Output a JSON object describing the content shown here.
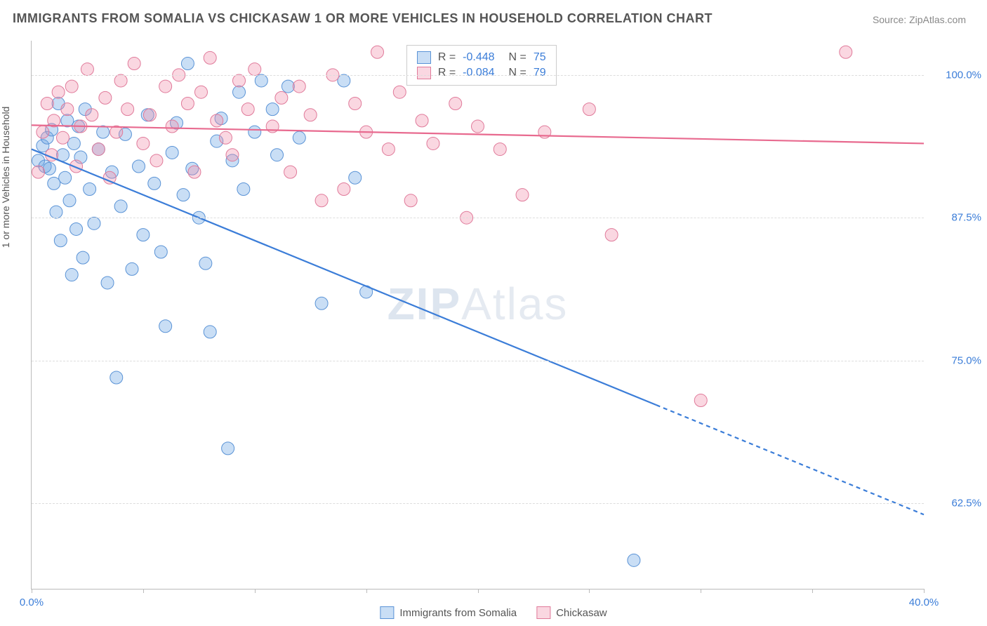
{
  "title": "IMMIGRANTS FROM SOMALIA VS CHICKASAW 1 OR MORE VEHICLES IN HOUSEHOLD CORRELATION CHART",
  "source_label": "Source: ",
  "source_name": "ZipAtlas.com",
  "ylabel": "1 or more Vehicles in Household",
  "watermark_a": "ZIP",
  "watermark_b": "Atlas",
  "chart": {
    "type": "scatter",
    "xlim": [
      0,
      40
    ],
    "ylim": [
      55,
      103
    ],
    "x_ticks": [
      0,
      5,
      10,
      15,
      20,
      25,
      30,
      35,
      40
    ],
    "x_tick_labels": {
      "0": "0.0%",
      "40": "40.0%"
    },
    "y_gridlines": [
      62.5,
      75,
      87.5,
      100
    ],
    "y_tick_labels": {
      "62.5": "62.5%",
      "75": "75.0%",
      "87.5": "87.5%",
      "100": "100.0%"
    },
    "background_color": "#ffffff",
    "grid_color": "#dddddd",
    "axis_color": "#bbbbbb",
    "label_color": "#555555",
    "tick_label_color": "#3b7dd8",
    "title_fontsize": 18,
    "label_fontsize": 14,
    "tick_fontsize": 15,
    "marker_radius": 9,
    "marker_opacity": 0.45,
    "line_width": 2.2,
    "series": [
      {
        "name": "Immigrants from Somalia",
        "color": "#3b7dd8",
        "fill": "rgba(100,160,225,0.35)",
        "stroke": "#5a93d6",
        "R": "-0.448",
        "N": "75",
        "trend": {
          "x1": 0,
          "y1": 93.5,
          "x2": 40,
          "y2": 61.5,
          "solid_until_x": 28
        },
        "points": [
          [
            0.3,
            92.5
          ],
          [
            0.5,
            93.8
          ],
          [
            0.6,
            92.0
          ],
          [
            0.7,
            94.5
          ],
          [
            0.8,
            91.8
          ],
          [
            0.9,
            95.2
          ],
          [
            1.0,
            90.5
          ],
          [
            1.1,
            88.0
          ],
          [
            1.2,
            97.5
          ],
          [
            1.3,
            85.5
          ],
          [
            1.4,
            93.0
          ],
          [
            1.5,
            91.0
          ],
          [
            1.6,
            96.0
          ],
          [
            1.7,
            89.0
          ],
          [
            1.8,
            82.5
          ],
          [
            1.9,
            94.0
          ],
          [
            2.0,
            86.5
          ],
          [
            2.1,
            95.5
          ],
          [
            2.2,
            92.8
          ],
          [
            2.3,
            84.0
          ],
          [
            2.4,
            97.0
          ],
          [
            2.6,
            90.0
          ],
          [
            2.8,
            87.0
          ],
          [
            3.0,
            93.5
          ],
          [
            3.2,
            95.0
          ],
          [
            3.4,
            81.8
          ],
          [
            3.6,
            91.5
          ],
          [
            3.8,
            73.5
          ],
          [
            4.0,
            88.5
          ],
          [
            4.2,
            94.8
          ],
          [
            4.5,
            83.0
          ],
          [
            4.8,
            92.0
          ],
          [
            5.0,
            86.0
          ],
          [
            5.2,
            96.5
          ],
          [
            5.5,
            90.5
          ],
          [
            5.8,
            84.5
          ],
          [
            6.0,
            78.0
          ],
          [
            6.3,
            93.2
          ],
          [
            6.5,
            95.8
          ],
          [
            6.8,
            89.5
          ],
          [
            7.0,
            101.0
          ],
          [
            7.2,
            91.8
          ],
          [
            7.5,
            87.5
          ],
          [
            7.8,
            83.5
          ],
          [
            8.0,
            77.5
          ],
          [
            8.3,
            94.2
          ],
          [
            8.5,
            96.2
          ],
          [
            8.8,
            67.3
          ],
          [
            9.0,
            92.5
          ],
          [
            9.3,
            98.5
          ],
          [
            9.5,
            90.0
          ],
          [
            10.0,
            95.0
          ],
          [
            10.3,
            99.5
          ],
          [
            10.8,
            97.0
          ],
          [
            11.0,
            93.0
          ],
          [
            11.5,
            99.0
          ],
          [
            12.0,
            94.5
          ],
          [
            13.0,
            80.0
          ],
          [
            14.0,
            99.5
          ],
          [
            14.5,
            91.0
          ],
          [
            15.0,
            81.0
          ],
          [
            27.0,
            57.5
          ]
        ]
      },
      {
        "name": "Chickasaw",
        "color": "#e86a8f",
        "fill": "rgba(240,140,170,0.35)",
        "stroke": "#e07a9a",
        "R": "-0.084",
        "N": "79",
        "trend": {
          "x1": 0,
          "y1": 95.6,
          "x2": 40,
          "y2": 94.0,
          "solid_until_x": 40
        },
        "points": [
          [
            0.3,
            91.5
          ],
          [
            0.5,
            95.0
          ],
          [
            0.7,
            97.5
          ],
          [
            0.9,
            93.0
          ],
          [
            1.0,
            96.0
          ],
          [
            1.2,
            98.5
          ],
          [
            1.4,
            94.5
          ],
          [
            1.6,
            97.0
          ],
          [
            1.8,
            99.0
          ],
          [
            2.0,
            92.0
          ],
          [
            2.2,
            95.5
          ],
          [
            2.5,
            100.5
          ],
          [
            2.7,
            96.5
          ],
          [
            3.0,
            93.5
          ],
          [
            3.3,
            98.0
          ],
          [
            3.5,
            91.0
          ],
          [
            3.8,
            95.0
          ],
          [
            4.0,
            99.5
          ],
          [
            4.3,
            97.0
          ],
          [
            4.6,
            101.0
          ],
          [
            5.0,
            94.0
          ],
          [
            5.3,
            96.5
          ],
          [
            5.6,
            92.5
          ],
          [
            6.0,
            99.0
          ],
          [
            6.3,
            95.5
          ],
          [
            6.6,
            100.0
          ],
          [
            7.0,
            97.5
          ],
          [
            7.3,
            91.5
          ],
          [
            7.6,
            98.5
          ],
          [
            8.0,
            101.5
          ],
          [
            8.3,
            96.0
          ],
          [
            8.7,
            94.5
          ],
          [
            9.0,
            93.0
          ],
          [
            9.3,
            99.5
          ],
          [
            9.7,
            97.0
          ],
          [
            10.0,
            100.5
          ],
          [
            10.8,
            95.5
          ],
          [
            11.2,
            98.0
          ],
          [
            11.6,
            91.5
          ],
          [
            12.0,
            99.0
          ],
          [
            12.5,
            96.5
          ],
          [
            13.0,
            89.0
          ],
          [
            13.5,
            100.0
          ],
          [
            14.0,
            90.0
          ],
          [
            14.5,
            97.5
          ],
          [
            15.0,
            95.0
          ],
          [
            15.5,
            102.0
          ],
          [
            16.0,
            93.5
          ],
          [
            16.5,
            98.5
          ],
          [
            17.0,
            89.0
          ],
          [
            17.5,
            96.0
          ],
          [
            18.0,
            94.0
          ],
          [
            19.0,
            97.5
          ],
          [
            19.5,
            87.5
          ],
          [
            20.0,
            95.5
          ],
          [
            21.0,
            93.5
          ],
          [
            22.0,
            89.5
          ],
          [
            23.0,
            95.0
          ],
          [
            25.0,
            97.0
          ],
          [
            26.0,
            86.0
          ],
          [
            30.0,
            71.5
          ],
          [
            36.5,
            102.0
          ]
        ]
      }
    ]
  },
  "stats_legend_labels": {
    "R": "R =",
    "N": "N ="
  },
  "bottom_legend": [
    "Immigrants from Somalia",
    "Chickasaw"
  ]
}
